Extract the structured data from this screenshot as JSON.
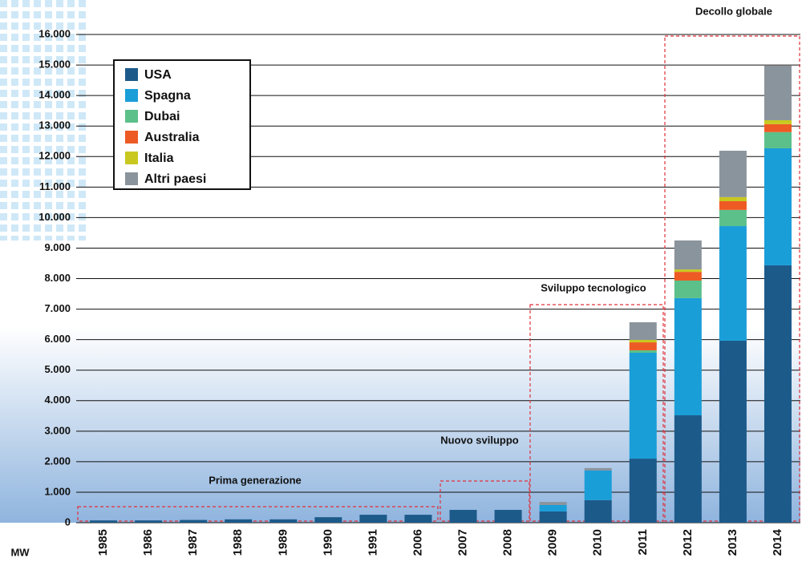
{
  "chart_data": {
    "type": "stacked_bar",
    "y_unit": "MW",
    "categories": [
      "1985",
      "1986",
      "1987",
      "1988",
      "1989",
      "1990",
      "1991",
      "2006",
      "2007",
      "2008",
      "2009",
      "2010",
      "2011",
      "2012",
      "2013",
      "2014"
    ],
    "series": [
      {
        "name": "USA",
        "color": "#1c5a8a",
        "values": [
          75,
          75,
          90,
          110,
          110,
          180,
          260,
          260,
          420,
          420,
          370,
          740,
          2100,
          3520,
          5965,
          8435
        ]
      },
      {
        "name": "Spagna",
        "color": "#1a9ed8",
        "values": [
          0,
          0,
          0,
          0,
          0,
          0,
          0,
          0,
          0,
          0,
          210,
          970,
          3470,
          3840,
          3755,
          3835
        ]
      },
      {
        "name": "Dubai",
        "color": "#5cc08a",
        "values": [
          0,
          0,
          0,
          0,
          0,
          0,
          0,
          0,
          0,
          0,
          0,
          0,
          80,
          575,
          530,
          530
        ]
      },
      {
        "name": "Australia",
        "color": "#ee5a24",
        "values": [
          0,
          0,
          0,
          0,
          0,
          0,
          0,
          0,
          0,
          0,
          0,
          0,
          260,
          285,
          285,
          260
        ]
      },
      {
        "name": "Italia",
        "color": "#c8c820",
        "values": [
          0,
          0,
          0,
          0,
          0,
          0,
          0,
          0,
          0,
          0,
          0,
          0,
          80,
          80,
          135,
          130
        ]
      },
      {
        "name": "Altri paesi",
        "color": "#8a949c",
        "values": [
          0,
          0,
          0,
          0,
          0,
          0,
          0,
          0,
          0,
          0,
          100,
          80,
          580,
          950,
          1520,
          1785
        ]
      }
    ],
    "ylim": [
      0,
      16000
    ],
    "yticks": [
      0,
      {
        "value": 1000,
        "label": "1.000"
      },
      {
        "value": 2000,
        "label": "2.000"
      },
      {
        "value": 3000,
        "label": "3.000"
      },
      {
        "value": 4000,
        "label": "4.000"
      },
      {
        "value": 5000,
        "label": "5.000"
      },
      {
        "value": 6000,
        "label": "6.000"
      },
      {
        "value": 7000,
        "label": "7.000"
      },
      {
        "value": 8000,
        "label": "8.000"
      },
      {
        "value": 9000,
        "label": "9.000"
      },
      {
        "value": 10000,
        "label": "10.000"
      },
      {
        "value": 11000,
        "label": "11.000"
      },
      {
        "value": 12000,
        "label": "12.000"
      },
      {
        "value": 13000,
        "label": "13.000"
      },
      {
        "value": 14000,
        "label": "14.000"
      },
      {
        "value": 15000,
        "label": "15.000"
      },
      {
        "value": 16000,
        "label": "16.000"
      }
    ],
    "grid": true,
    "legend": "upper left",
    "annotations": [
      "Prima generazione",
      "Nuovo sviluppo",
      "Sviluppo tecnologico",
      "Decollo globale"
    ]
  }
}
